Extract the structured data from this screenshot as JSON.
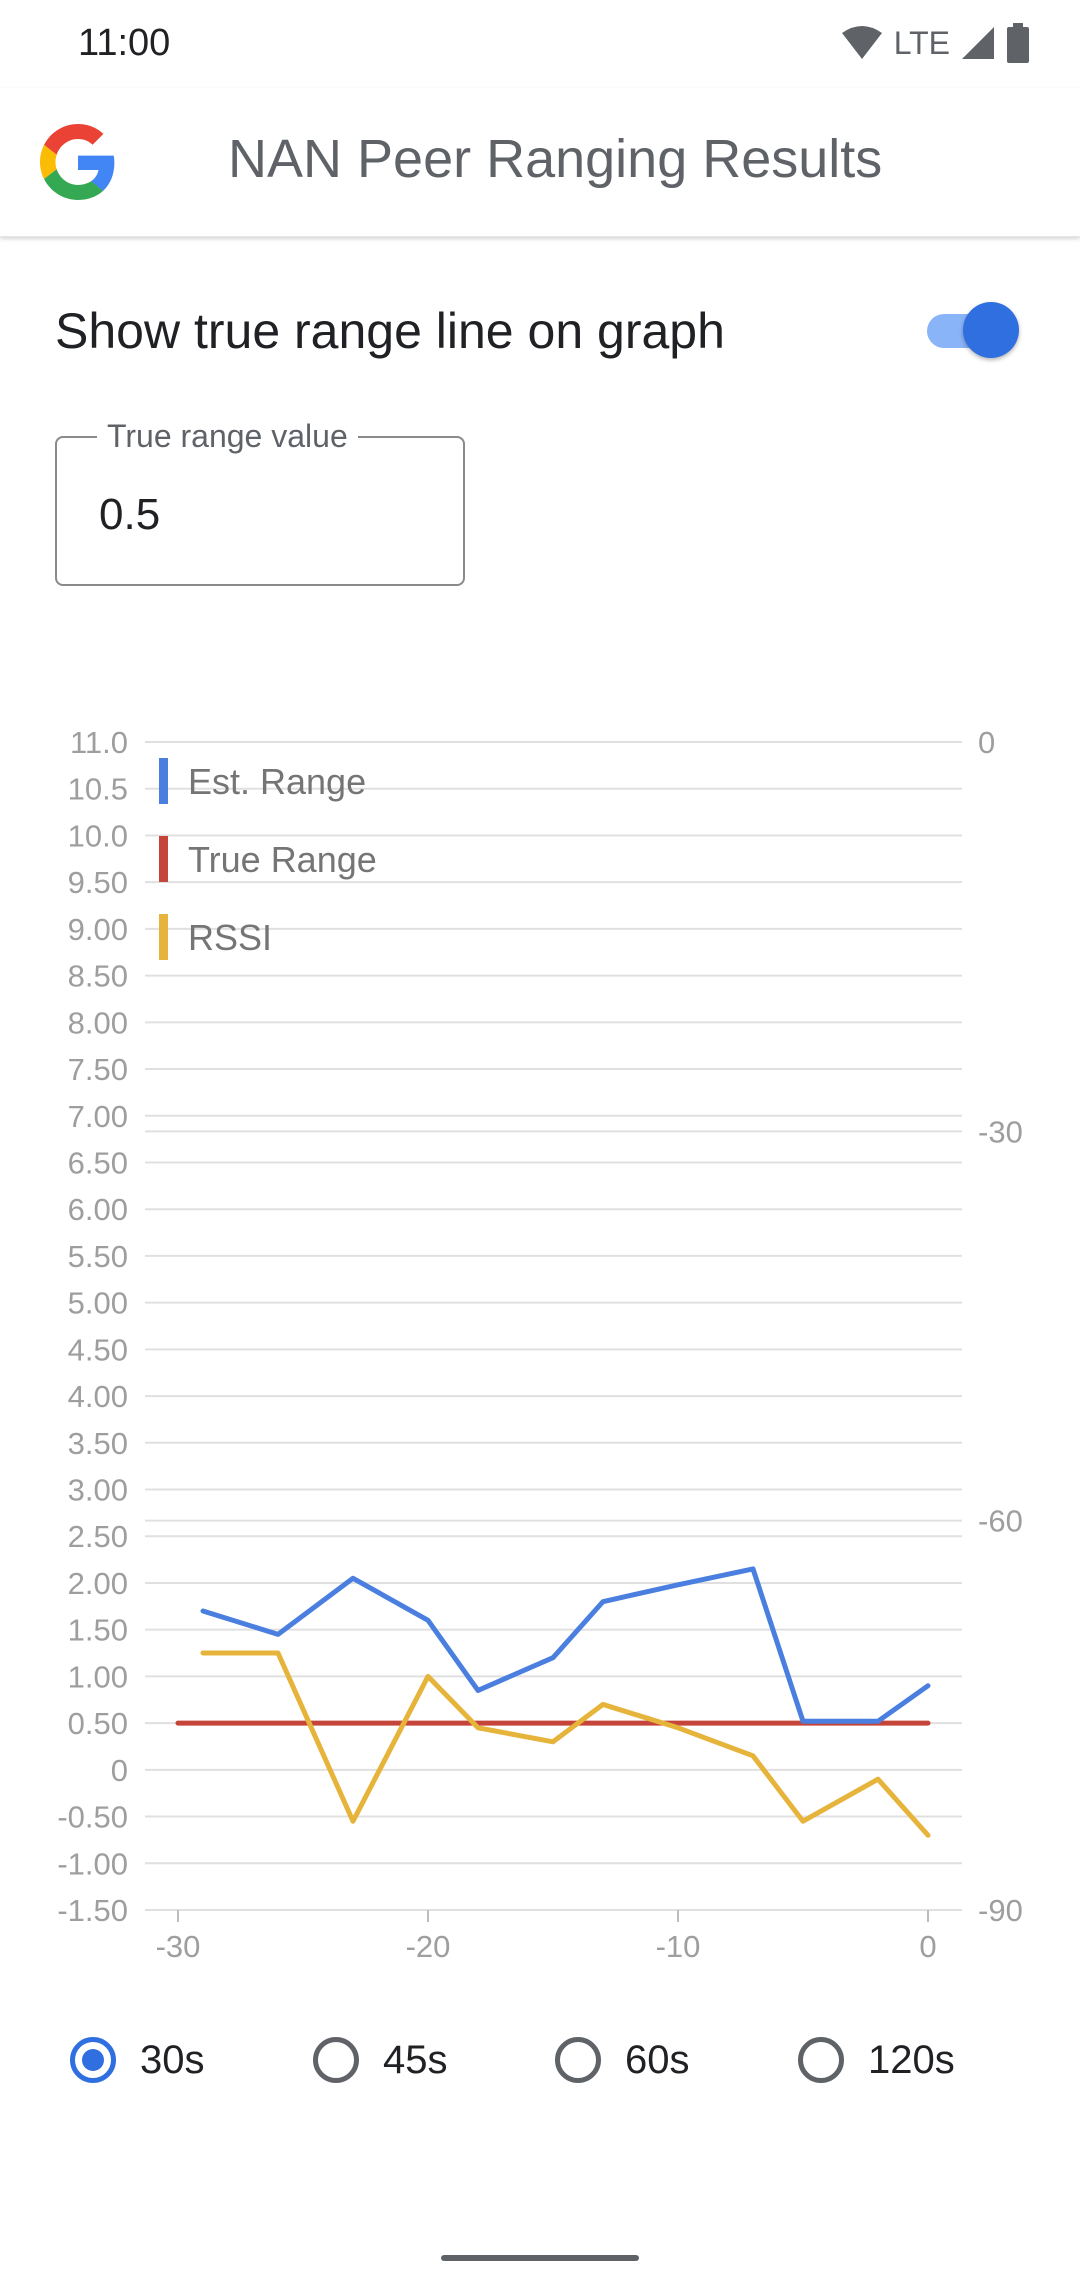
{
  "status_bar": {
    "time": "11:00",
    "network": "LTE",
    "icons": [
      "wifi-icon",
      "cell-signal-icon",
      "battery-icon"
    ]
  },
  "app_bar": {
    "title": "NAN Peer Ranging Results",
    "logo": "google-g-logo"
  },
  "settings": {
    "toggle_label": "Show true range line on graph",
    "toggle_on": true,
    "field_label": "True range value",
    "field_value": "0.5"
  },
  "chart_data": {
    "type": "line",
    "left_axis": {
      "ticks": [
        "11.0",
        "10.5",
        "10.0",
        "9.50",
        "9.00",
        "8.50",
        "8.00",
        "7.50",
        "7.00",
        "6.50",
        "6.00",
        "5.50",
        "5.00",
        "4.50",
        "4.00",
        "3.50",
        "3.00",
        "2.50",
        "2.00",
        "1.50",
        "1.00",
        "0.50",
        "0",
        "-0.50",
        "-1.00",
        "-1.50"
      ],
      "range": [
        -1.5,
        11.0
      ]
    },
    "right_axis": {
      "ticks": [
        "0",
        "-30",
        "-60",
        "-90"
      ],
      "range": [
        -90,
        0
      ]
    },
    "x_axis": {
      "ticks": [
        "-30",
        "-20",
        "-10",
        "0"
      ],
      "range": [
        -30,
        0
      ]
    },
    "legend": [
      "Est. Range",
      "True Range",
      "RSSI"
    ],
    "series": [
      {
        "name": "Est. Range",
        "color": "#4a7fe0",
        "axis": "left",
        "x": [
          -29,
          -26,
          -23,
          -20,
          -18,
          -15,
          -13,
          -10,
          -7,
          -5,
          -2,
          0
        ],
        "y": [
          1.7,
          1.45,
          2.05,
          1.6,
          0.85,
          1.2,
          1.8,
          1.98,
          2.15,
          0.52,
          0.52,
          0.9
        ]
      },
      {
        "name": "True Range",
        "color": "#c5453a",
        "axis": "left",
        "x": [
          -30,
          0
        ],
        "y": [
          0.5,
          0.5
        ]
      },
      {
        "name": "RSSI",
        "color": "#e6b43a",
        "axis": "left",
        "x": [
          -29,
          -26,
          -23,
          -20,
          -18,
          -15,
          -13,
          -10,
          -7,
          -5,
          -2,
          0
        ],
        "y": [
          1.25,
          1.25,
          -0.55,
          1.0,
          0.45,
          0.3,
          0.7,
          0.45,
          0.15,
          -0.55,
          -0.1,
          -0.7
        ]
      }
    ],
    "grid": true,
    "legend_position": "top-left"
  },
  "time_window": {
    "options": [
      {
        "label": "30s",
        "checked": true
      },
      {
        "label": "45s",
        "checked": false
      },
      {
        "label": "60s",
        "checked": false
      },
      {
        "label": "120s",
        "checked": false
      }
    ]
  }
}
